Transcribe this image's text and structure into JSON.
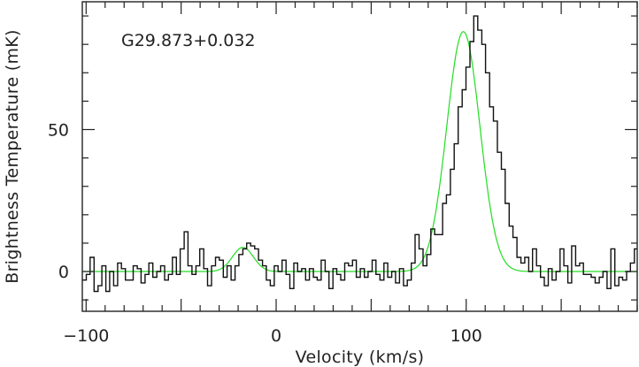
{
  "chart_data": {
    "type": "line",
    "annotation": "G29.873+0.032",
    "xlabel": "Velocity (km/s)",
    "ylabel": "Brightness Temperature (mK)",
    "xlim": [
      -102,
      190
    ],
    "ylim": [
      -14,
      95
    ],
    "x_ticks": [
      -100,
      0,
      100
    ],
    "x_tick_labels": [
      "−100",
      "0",
      "100"
    ],
    "y_ticks": [
      0,
      50
    ],
    "y_tick_labels": [
      "0",
      "50"
    ],
    "grid": false,
    "legend": "none",
    "colors": {
      "observed": "#111111",
      "fit": "#22dd22",
      "axes": "#222222"
    },
    "series": [
      {
        "style": "step",
        "x": [
          -102.0,
          -99.9,
          -97.9,
          -95.8,
          -93.7,
          -91.7,
          -89.6,
          -87.6,
          -85.5,
          -83.4,
          -81.4,
          -79.3,
          -77.3,
          -75.2,
          -73.1,
          -71.1,
          -69.0,
          -67.0,
          -64.9,
          -62.8,
          -60.8,
          -58.7,
          -56.7,
          -54.6,
          -52.5,
          -50.5,
          -48.4,
          -46.4,
          -44.3,
          -42.2,
          -40.2,
          -38.1,
          -36.1,
          -34.0,
          -31.9,
          -29.9,
          -27.8,
          -25.8,
          -23.7,
          -21.6,
          -19.6,
          -17.5,
          -15.5,
          -13.4,
          -11.3,
          -9.3,
          -7.2,
          -5.2,
          -3.1,
          -1.0,
          1.0,
          3.1,
          5.2,
          7.2,
          9.3,
          11.3,
          13.4,
          15.5,
          17.5,
          19.6,
          21.6,
          23.7,
          25.8,
          27.8,
          29.9,
          31.9,
          34.0,
          36.1,
          38.1,
          40.2,
          42.2,
          44.3,
          46.4,
          48.4,
          50.5,
          52.5,
          54.6,
          56.7,
          58.7,
          60.8,
          62.8,
          64.9,
          67.0,
          69.0,
          71.1,
          73.1,
          75.2,
          77.3,
          79.3,
          81.4,
          83.4,
          85.5,
          87.6,
          89.6,
          91.7,
          93.7,
          95.8,
          97.9,
          99.9,
          102.0,
          104.0,
          106.1,
          108.2,
          110.2,
          112.3,
          114.3,
          116.4,
          118.5,
          120.5,
          122.6,
          124.6,
          126.7,
          128.8,
          130.8,
          132.9,
          134.9,
          137.0,
          139.1,
          141.1,
          143.2,
          145.2,
          147.3,
          149.4,
          151.4,
          153.5,
          155.5,
          157.6,
          159.7,
          161.7,
          163.8,
          165.8,
          167.9,
          170.0,
          172.0,
          174.1,
          176.1,
          178.2,
          180.3,
          182.3,
          184.4,
          186.4,
          188.5
        ],
        "values": [
          -3,
          -1,
          5,
          -7,
          -5,
          2,
          -7,
          0,
          -5,
          3,
          1,
          -3,
          -3,
          2,
          1,
          -4,
          -1,
          3,
          -2,
          0,
          2,
          -3,
          -1,
          5,
          -1,
          8,
          14,
          2,
          -1,
          2,
          8,
          1,
          -5,
          2,
          5,
          4,
          -2,
          2,
          -3,
          2,
          6,
          8,
          10,
          9,
          8,
          4,
          2,
          -3,
          -5,
          2,
          0,
          4,
          -1,
          -6,
          3,
          0,
          1,
          -3,
          1,
          -2,
          -3,
          4,
          0,
          -6,
          1,
          -1,
          -3,
          3,
          2,
          4,
          -2,
          1,
          -2,
          0,
          4,
          -1,
          -3,
          3,
          -2,
          0,
          -4,
          1,
          -5,
          -3,
          3,
          13,
          8,
          2,
          6,
          15,
          13,
          13,
          24,
          27,
          36,
          45,
          58,
          64,
          72,
          81,
          90,
          85,
          80,
          70,
          58,
          53,
          42,
          36,
          24,
          16,
          12,
          5,
          3,
          5,
          0,
          8,
          2,
          -2,
          -5,
          1,
          -3,
          0,
          8,
          2,
          -4,
          9,
          2,
          3,
          -1,
          -1,
          -2,
          -4,
          -2,
          0,
          -6,
          8,
          -5,
          -2,
          -3,
          0,
          3,
          8
        ],
        "x_end": 190.0
      },
      {
        "style": "smooth",
        "model": "gaussian",
        "components": [
          {
            "center": 98.5,
            "amplitude": 84.5,
            "fwhm": 20.5
          },
          {
            "center": -17.5,
            "amplitude": 8.5,
            "fwhm": 13.0
          }
        ]
      }
    ]
  }
}
